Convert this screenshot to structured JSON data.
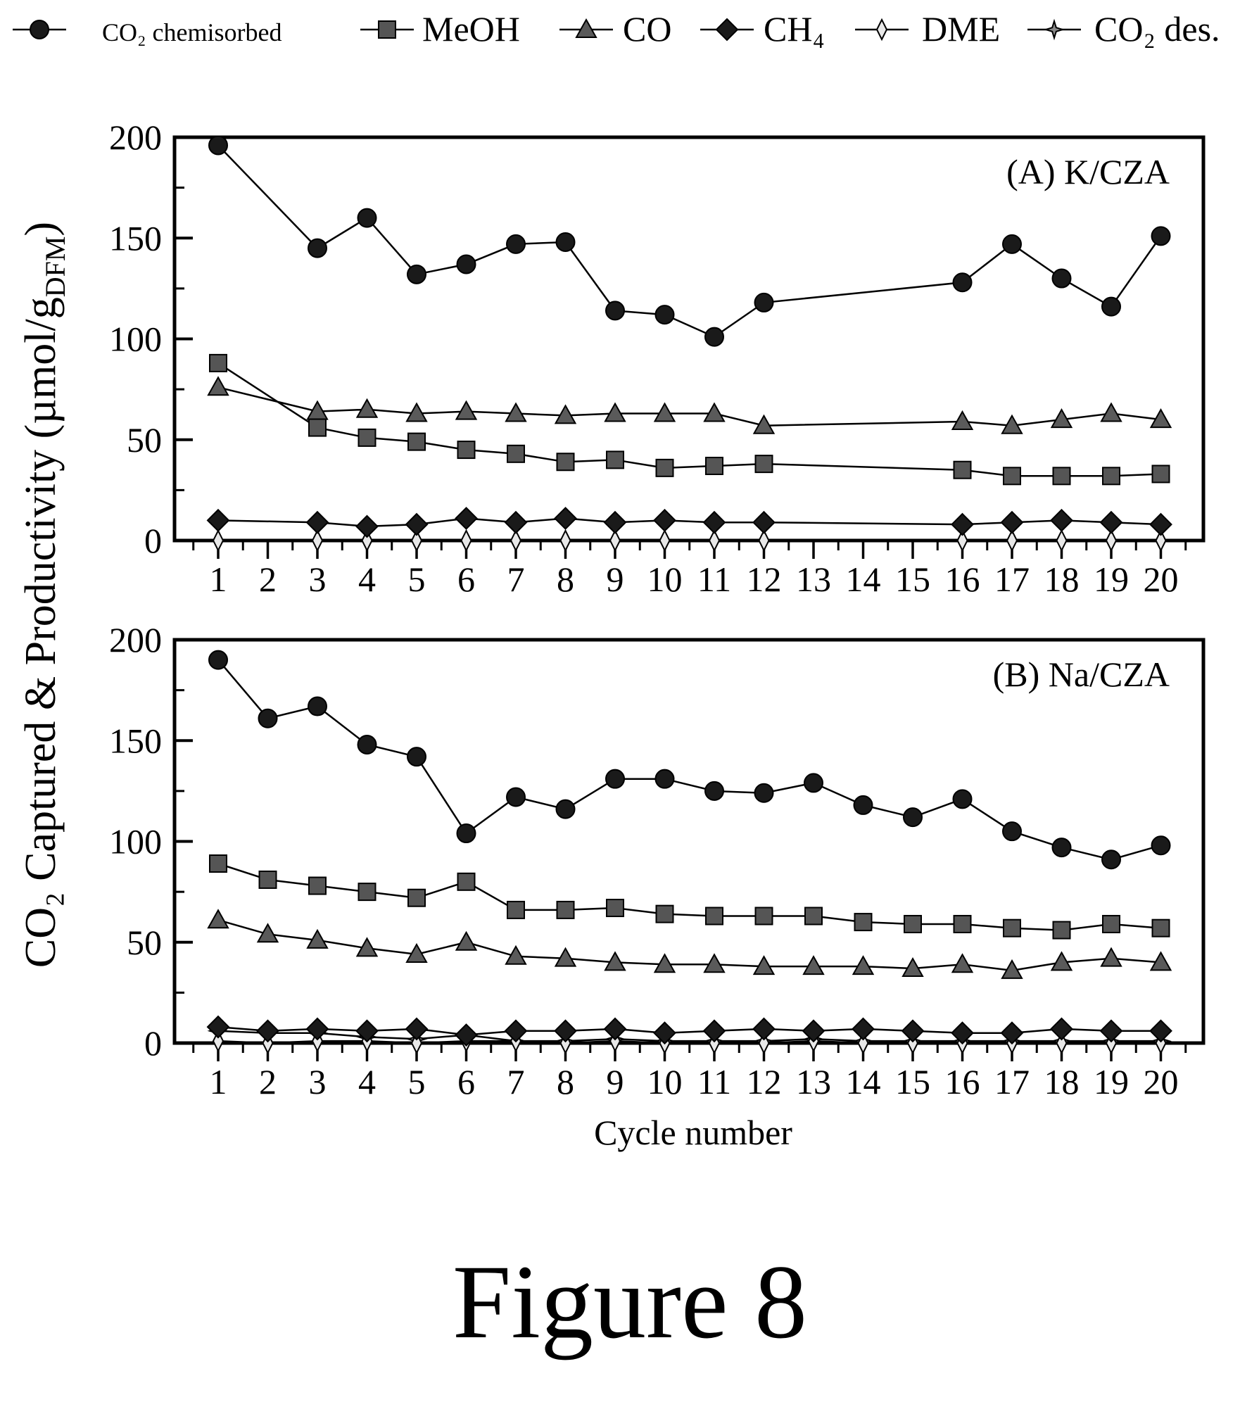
{
  "legend": [
    {
      "key": "co2_chemisorbed",
      "label": "CO₂ chemisorbed",
      "marker": "circle",
      "fill": "#1a1a1a"
    },
    {
      "key": "meoh",
      "label": "MeOH",
      "marker": "square",
      "fill": "#555555"
    },
    {
      "key": "co",
      "label": "CO",
      "marker": "triangle",
      "fill": "#5a5a5a"
    },
    {
      "key": "ch4",
      "label": "CH₄",
      "marker": "diamond",
      "fill": "#1a1a1a"
    },
    {
      "key": "dme",
      "label": "DME",
      "marker": "thin-diamond",
      "fill": "#e8e8e8"
    },
    {
      "key": "co2_des",
      "label": "CO₂ des.",
      "marker": "star",
      "fill": "#888888"
    }
  ],
  "ylabel": "CO₂ Captured & Productivity (µmol/g",
  "ylabel_subscript": "DFM",
  "ylabel_close": ")",
  "xlabel": "Cycle number",
  "caption": "Figure 8",
  "chart_data": [
    {
      "type": "line",
      "panel_label": "(A) K/CZA",
      "categories": [
        "1",
        "2",
        "3",
        "4",
        "5",
        "6",
        "7",
        "8",
        "9",
        "10",
        "11",
        "12",
        "13",
        "14",
        "15",
        "16",
        "17",
        "18",
        "19",
        "20"
      ],
      "ylim": [
        0,
        200
      ],
      "yticks": [
        0,
        50,
        100,
        150,
        200
      ],
      "series": [
        {
          "key": "co2_chemisorbed",
          "name": "CO₂ chemisorbed",
          "values": [
            196,
            null,
            145,
            160,
            132,
            137,
            147,
            148,
            114,
            112,
            101,
            118,
            null,
            null,
            null,
            128,
            147,
            130,
            116,
            151
          ]
        },
        {
          "key": "meoh",
          "name": "MeOH",
          "values": [
            88,
            null,
            56,
            51,
            49,
            45,
            43,
            39,
            40,
            36,
            37,
            38,
            null,
            null,
            null,
            35,
            32,
            32,
            32,
            33
          ]
        },
        {
          "key": "co",
          "name": "CO",
          "values": [
            76,
            null,
            64,
            65,
            63,
            64,
            63,
            62,
            63,
            63,
            63,
            57,
            null,
            null,
            null,
            59,
            57,
            60,
            63,
            60
          ]
        },
        {
          "key": "ch4",
          "name": "CH₄",
          "values": [
            10,
            null,
            9,
            7,
            8,
            11,
            9,
            11,
            9,
            10,
            9,
            9,
            null,
            null,
            null,
            8,
            9,
            10,
            9,
            8
          ]
        },
        {
          "key": "dme",
          "name": "DME",
          "values": [
            0,
            null,
            0,
            0,
            0,
            0,
            0,
            0,
            0,
            0,
            0,
            0,
            null,
            null,
            null,
            0,
            0,
            0,
            0,
            0
          ]
        },
        {
          "key": "co2_des",
          "name": "CO₂ des.",
          "values": [
            0,
            null,
            0,
            0,
            0,
            0,
            0,
            0,
            0,
            0,
            0,
            0,
            null,
            null,
            null,
            0,
            0,
            0,
            0,
            0
          ]
        }
      ]
    },
    {
      "type": "line",
      "panel_label": "(B) Na/CZA",
      "categories": [
        "1",
        "2",
        "3",
        "4",
        "5",
        "6",
        "7",
        "8",
        "9",
        "10",
        "11",
        "12",
        "13",
        "14",
        "15",
        "16",
        "17",
        "18",
        "19",
        "20"
      ],
      "ylim": [
        0,
        200
      ],
      "yticks": [
        0,
        50,
        100,
        150,
        200
      ],
      "series": [
        {
          "key": "co2_chemisorbed",
          "name": "CO₂ chemisorbed",
          "values": [
            190,
            161,
            167,
            148,
            142,
            104,
            122,
            116,
            131,
            131,
            125,
            124,
            129,
            118,
            112,
            121,
            105,
            97,
            91,
            98
          ]
        },
        {
          "key": "meoh",
          "name": "MeOH",
          "values": [
            89,
            81,
            78,
            75,
            72,
            80,
            66,
            66,
            67,
            64,
            63,
            63,
            63,
            60,
            59,
            59,
            57,
            56,
            59,
            57
          ]
        },
        {
          "key": "co",
          "name": "CO",
          "values": [
            61,
            54,
            51,
            47,
            44,
            50,
            43,
            42,
            40,
            39,
            39,
            38,
            38,
            38,
            37,
            39,
            36,
            40,
            42,
            40
          ]
        },
        {
          "key": "ch4",
          "name": "CH₄",
          "values": [
            8,
            6,
            7,
            6,
            7,
            4,
            6,
            6,
            7,
            5,
            6,
            7,
            6,
            7,
            6,
            5,
            5,
            7,
            6,
            6
          ]
        },
        {
          "key": "dme",
          "name": "DME",
          "values": [
            1,
            0,
            1,
            1,
            0,
            1,
            1,
            0,
            1,
            0,
            0,
            0,
            1,
            0,
            0,
            0,
            0,
            0,
            0,
            0
          ]
        },
        {
          "key": "co2_des",
          "name": "CO₂ des.",
          "values": [
            6,
            5,
            5,
            3,
            2,
            4,
            1,
            1,
            2,
            1,
            1,
            1,
            2,
            1,
            1,
            1,
            1,
            1,
            1,
            1
          ]
        }
      ]
    }
  ]
}
